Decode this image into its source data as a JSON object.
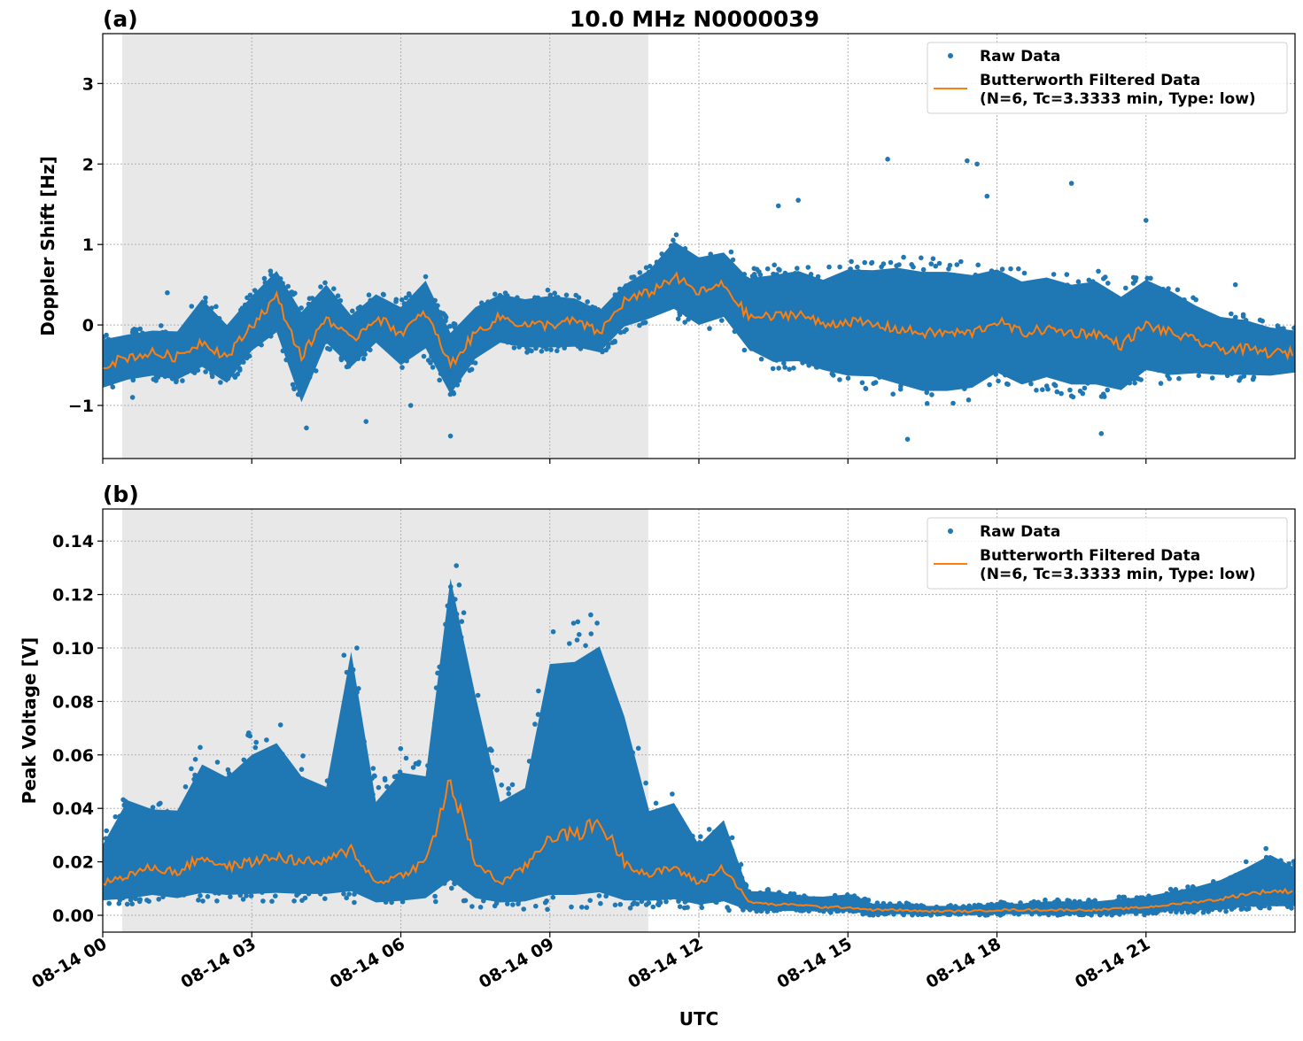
{
  "chart_data": [
    {
      "type": "scatter",
      "panel_label": "(a)",
      "title": "10.0 MHz N0000039",
      "xlabel": "",
      "ylabel": "Doppler Shift [Hz]",
      "xlim_hours_utc": [
        0,
        24
      ],
      "ylim": [
        -1.66,
        3.62
      ],
      "yticks": [
        3,
        2,
        1,
        0,
        -1
      ],
      "ytick_labels": [
        "3",
        "2",
        "1",
        "0",
        "−1"
      ],
      "grid": true,
      "legend_placement": "top-right",
      "shaded_interval_hours_utc": [
        0.39,
        10.98
      ],
      "x_hours": [
        0,
        0.5,
        1,
        1.5,
        2,
        2.5,
        3,
        3.5,
        4,
        4.5,
        5,
        5.5,
        6,
        6.5,
        7,
        7.5,
        8,
        8.5,
        9,
        9.5,
        10,
        10.5,
        11,
        11.5,
        12,
        12.5,
        13,
        13.5,
        14,
        14.5,
        15,
        15.5,
        16,
        16.5,
        17,
        17.5,
        18,
        18.5,
        19,
        19.5,
        20,
        20.5,
        21,
        21.5,
        22,
        22.5,
        23,
        23.5,
        24
      ],
      "series": [
        {
          "name": "Raw Data",
          "kind": "scatter",
          "color": "#1f77b4",
          "low": [
            -0.85,
            -0.75,
            -0.7,
            -0.75,
            -0.6,
            -0.8,
            -0.4,
            -0.2,
            -1.1,
            -0.3,
            -0.6,
            -0.3,
            -0.6,
            -0.4,
            -0.95,
            -0.5,
            -0.3,
            -0.35,
            -0.35,
            -0.35,
            -0.4,
            -0.1,
            0.0,
            0.1,
            -0.1,
            0.0,
            -0.4,
            -0.6,
            -0.6,
            -0.7,
            -0.8,
            -0.8,
            -0.9,
            -1.0,
            -1.0,
            -0.95,
            -0.75,
            -0.9,
            -0.8,
            -0.9,
            -0.9,
            -0.95,
            -0.7,
            -0.75,
            -0.7,
            -0.7,
            -0.7,
            -0.7,
            -0.65
          ],
          "high": [
            -0.1,
            -0.05,
            0.0,
            0.0,
            0.45,
            0.1,
            0.45,
            0.75,
            0.3,
            0.6,
            0.2,
            0.45,
            0.3,
            0.65,
            0.0,
            0.3,
            0.45,
            0.4,
            0.45,
            0.4,
            0.25,
            0.55,
            0.75,
            1.15,
            0.95,
            1.0,
            0.7,
            0.75,
            0.8,
            0.7,
            0.85,
            0.85,
            0.9,
            0.85,
            0.85,
            0.8,
            0.85,
            0.7,
            0.75,
            0.65,
            0.7,
            0.5,
            0.7,
            0.55,
            0.35,
            0.2,
            0.15,
            0.05,
            0.0
          ],
          "outliers": [
            [
              0.6,
              -0.9
            ],
            [
              1.3,
              0.4
            ],
            [
              4.1,
              -1.28
            ],
            [
              5.3,
              -1.2
            ],
            [
              6.2,
              -1.0
            ],
            [
              6.5,
              0.6
            ],
            [
              7.0,
              -1.38
            ],
            [
              13.6,
              1.48
            ],
            [
              14.0,
              1.55
            ],
            [
              15.8,
              2.06
            ],
            [
              16.2,
              -1.42
            ],
            [
              17.4,
              2.04
            ],
            [
              17.6,
              2.0
            ],
            [
              17.8,
              1.6
            ],
            [
              19.5,
              1.76
            ],
            [
              20.1,
              -1.35
            ],
            [
              21.0,
              1.3
            ],
            [
              22.8,
              0.5
            ]
          ]
        },
        {
          "name": "Butterworth Filtered Data\n(N=6, Tc=3.3333 min, Type: low)",
          "kind": "line",
          "color": "#ff7f0e",
          "values": [
            -0.5,
            -0.4,
            -0.35,
            -0.4,
            -0.2,
            -0.4,
            0.0,
            0.35,
            -0.4,
            0.1,
            -0.2,
            0.1,
            -0.1,
            0.15,
            -0.5,
            -0.1,
            0.1,
            0.0,
            0.0,
            0.05,
            -0.1,
            0.3,
            0.4,
            0.6,
            0.4,
            0.5,
            0.1,
            0.1,
            0.15,
            0.0,
            0.05,
            0.0,
            -0.05,
            -0.1,
            -0.1,
            -0.1,
            0.05,
            -0.1,
            -0.05,
            -0.1,
            -0.1,
            -0.25,
            0.0,
            -0.1,
            -0.2,
            -0.3,
            -0.3,
            -0.35,
            -0.35
          ]
        }
      ]
    },
    {
      "type": "scatter",
      "panel_label": "(b)",
      "title": "",
      "xlabel": "UTC",
      "ylabel": "Peak Voltage [V]",
      "xlim_hours_utc": [
        0,
        24
      ],
      "ylim": [
        -0.0063,
        0.152
      ],
      "yticks": [
        0.0,
        0.02,
        0.04,
        0.06,
        0.08,
        0.1,
        0.12,
        0.14
      ],
      "ytick_labels": [
        "0.00",
        "0.02",
        "0.04",
        "0.06",
        "0.08",
        "0.10",
        "0.12",
        "0.14"
      ],
      "xticks_hours": [
        0,
        3,
        6,
        9,
        12,
        15,
        18,
        21
      ],
      "xtick_labels": [
        "08-14 00",
        "08-14 03",
        "08-14 06",
        "08-14 09",
        "08-14 12",
        "08-14 15",
        "08-14 18",
        "08-14 21"
      ],
      "grid": true,
      "legend_placement": "top-right",
      "shaded_interval_hours_utc": [
        0.39,
        10.98
      ],
      "x_hours": [
        0,
        0.5,
        1,
        1.5,
        2,
        2.5,
        3,
        3.5,
        4,
        4.5,
        5,
        5.5,
        6,
        6.5,
        7,
        7.5,
        8,
        8.5,
        9,
        9.5,
        10,
        10.5,
        11,
        11.5,
        12,
        12.5,
        13,
        13.5,
        14,
        14.5,
        15,
        15.5,
        16,
        16.5,
        17,
        17.5,
        18,
        18.5,
        19,
        19.5,
        20,
        20.5,
        21,
        21.5,
        22,
        22.5,
        23,
        23.5,
        24
      ],
      "series": [
        {
          "name": "Raw Data",
          "kind": "scatter",
          "color": "#1f77b4",
          "low": [
            0.004,
            0.004,
            0.005,
            0.004,
            0.005,
            0.005,
            0.005,
            0.005,
            0.005,
            0.005,
            0.005,
            0.003,
            0.003,
            0.003,
            0.004,
            0.003,
            0.003,
            0.002,
            0.002,
            0.002,
            0.002,
            0.002,
            0.003,
            0.003,
            0.002,
            0.002,
            0.001,
            0.001,
            0.001,
            0.001,
            0.001,
            0.0,
            0.0,
            0.0,
            0.0,
            0.0,
            0.0,
            0.0,
            0.0,
            0.0,
            0.0,
            0.0,
            0.0,
            0.001,
            0.001,
            0.001,
            0.002,
            0.002,
            0.002
          ],
          "high": [
            0.03,
            0.05,
            0.045,
            0.045,
            0.065,
            0.06,
            0.07,
            0.075,
            0.06,
            0.055,
            0.117,
            0.05,
            0.063,
            0.06,
            0.145,
            0.098,
            0.05,
            0.055,
            0.11,
            0.111,
            0.117,
            0.088,
            0.045,
            0.048,
            0.03,
            0.04,
            0.01,
            0.01,
            0.008,
            0.008,
            0.009,
            0.005,
            0.005,
            0.004,
            0.004,
            0.004,
            0.005,
            0.005,
            0.006,
            0.006,
            0.006,
            0.007,
            0.008,
            0.01,
            0.012,
            0.015,
            0.02,
            0.026,
            0.02
          ]
        },
        {
          "name": "Butterworth Filtered Data\n(N=6, Tc=3.3333 min, Type: low)",
          "kind": "line",
          "color": "#ff7f0e",
          "values": [
            0.012,
            0.015,
            0.018,
            0.016,
            0.022,
            0.018,
            0.02,
            0.022,
            0.02,
            0.02,
            0.025,
            0.012,
            0.015,
            0.02,
            0.05,
            0.02,
            0.012,
            0.018,
            0.03,
            0.03,
            0.035,
            0.02,
            0.015,
            0.018,
            0.012,
            0.018,
            0.005,
            0.004,
            0.004,
            0.003,
            0.003,
            0.002,
            0.002,
            0.0015,
            0.0015,
            0.0015,
            0.002,
            0.002,
            0.002,
            0.002,
            0.002,
            0.0025,
            0.003,
            0.004,
            0.005,
            0.006,
            0.008,
            0.009,
            0.009
          ]
        }
      ]
    }
  ],
  "legend": {
    "raw_label": "Raw Data",
    "filtered_line1": "Butterworth Filtered Data",
    "filtered_line2": "(N=6, Tc=3.3333 min, Type: low)"
  }
}
